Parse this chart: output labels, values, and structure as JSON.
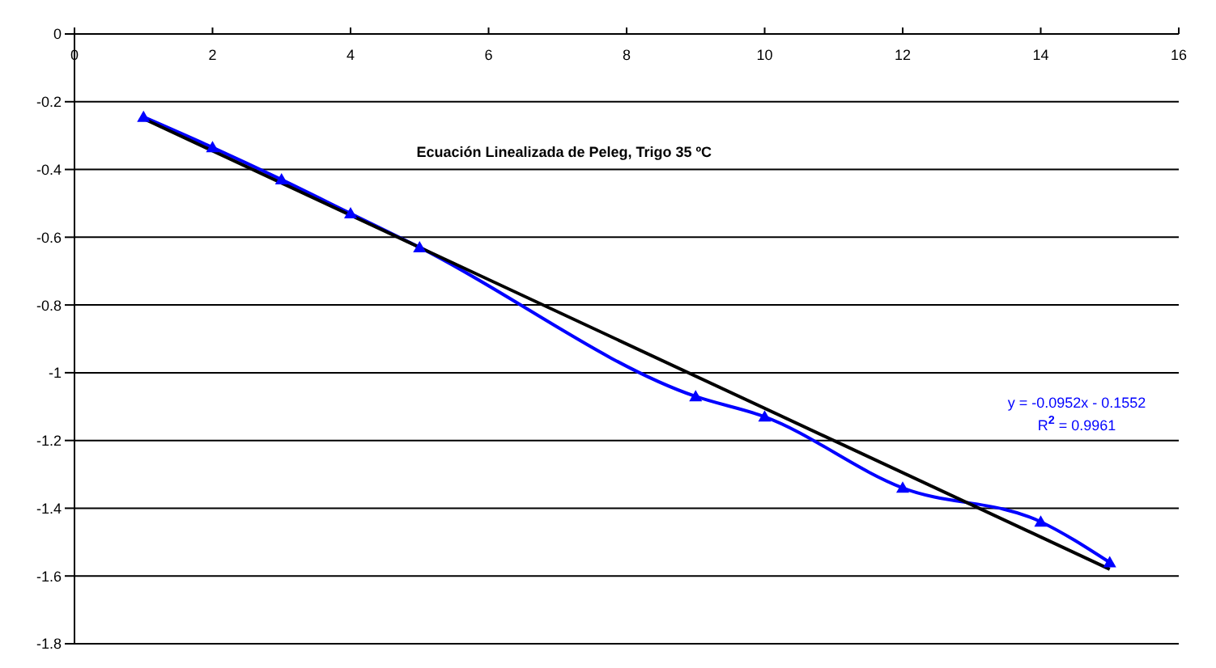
{
  "chart_data": {
    "type": "line",
    "title": "Ecuación Linealizada de Peleg, Trigo 35 ºC",
    "annotations": [
      "y = -0.0952x - 0.1552",
      "R$^{2}$ = 0.9961"
    ],
    "x": [
      1,
      2,
      3,
      4,
      5,
      9,
      10,
      12,
      14,
      15
    ],
    "series": [
      {
        "color": "#0000ff",
        "marker": "triangle",
        "values": [
          -0.245,
          -0.335,
          -0.43,
          -0.53,
          -0.63,
          -1.07,
          -1.13,
          -1.34,
          -1.44,
          -1.56
        ]
      },
      {
        "type": "line",
        "color": "#000000",
        "marker": "none",
        "x": [
          1,
          15
        ],
        "values": [
          -0.25,
          -1.58
        ]
      }
    ],
    "xlim": [
      0,
      16
    ],
    "xticks": [
      0,
      2,
      4,
      6,
      8,
      10,
      12,
      14,
      16
    ],
    "ylim": [
      -1.8,
      0
    ],
    "yticks": [
      -1.8,
      -1.6,
      -1.4,
      -1.2,
      -1,
      -0.8,
      -0.6,
      -0.4,
      -0.2,
      0
    ],
    "grid": "y"
  }
}
